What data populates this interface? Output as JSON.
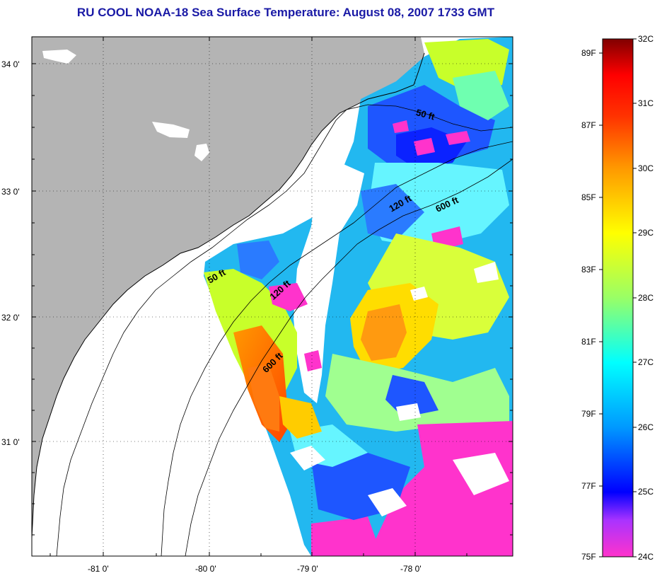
{
  "title": "RU COOL  NOAA-18  Sea Surface Temperature:  August 08, 2007 1733 GMT",
  "colors": {
    "land": "#b4b4b4",
    "title": "#1a1aa6",
    "grid": "#000000"
  },
  "axes": {
    "lat_ticks": [
      "34 0'",
      "33 0'",
      "32 0'",
      "31 0'"
    ],
    "lon_ticks": [
      "-81 0'",
      "-80 0'",
      "-79 0'",
      "-78 0'"
    ]
  },
  "contours": [
    "50 ft",
    "120 ft",
    "600 ft",
    "50 ft",
    "120 ft",
    "600 ft"
  ],
  "colorbar": {
    "celsius": [
      "32C",
      "31C",
      "30C",
      "29C",
      "28C",
      "27C",
      "26C",
      "25C",
      "24C"
    ],
    "fahrenheit": [
      "89F",
      "87F",
      "85F",
      "83F",
      "81F",
      "79F",
      "77F",
      "75F"
    ],
    "stops": [
      "#ff33cc",
      "#9933ff",
      "#0000ff",
      "#0099ff",
      "#00ffff",
      "#99ff66",
      "#ffff00",
      "#ff9900",
      "#ff3300",
      "#ff0000",
      "#800000"
    ]
  }
}
